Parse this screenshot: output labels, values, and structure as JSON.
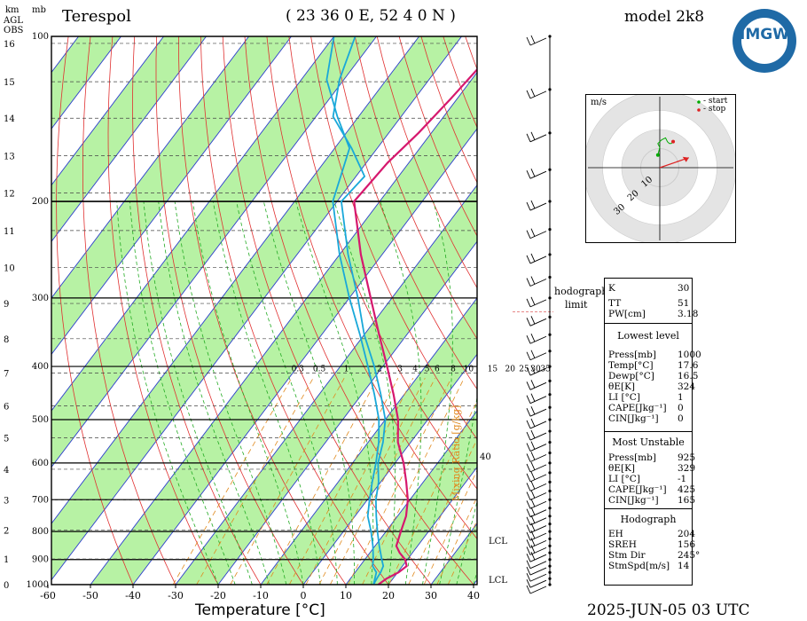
{
  "header": {
    "station": "Terespol",
    "coords": "( 23 36  0 E, 52  4  0 N )",
    "model": "model 2k8",
    "date_time": "2025-JUN-05   03 UTC",
    "logo_text": "IMGW"
  },
  "axes": {
    "left_units_km": "km",
    "left_units_mb": "mb",
    "agl": "AGL",
    "obs": "OBS",
    "xlabel": "Temperature [°C]",
    "mixing_ratio_label": "Mixing Ratio [g/kg]",
    "x_ticks": [
      "-60",
      "-50",
      "-40",
      "-30",
      "-20",
      "-10",
      "0",
      "10",
      "20",
      "30",
      "40"
    ],
    "p_ticks": [
      "100",
      "200",
      "300",
      "400",
      "500",
      "600",
      "700",
      "800",
      "900",
      "1000"
    ],
    "km_ticks": [
      "0",
      "1",
      "2",
      "3",
      "4",
      "5",
      "6",
      "7",
      "8",
      "9",
      "10",
      "11",
      "12",
      "13",
      "14",
      "15",
      "16"
    ],
    "mixing_ratio_ticks": [
      "0.3",
      "0.5",
      "1",
      "2",
      "3",
      "4",
      "5",
      "6",
      "8",
      "10",
      "15",
      "20",
      "25",
      "30",
      "35"
    ],
    "mixing_extra": "40",
    "lcl_label": "LCL",
    "lcl_label2": "LCL",
    "hodograph_limit_line1": "hodograph",
    "hodograph_limit_line2": "limit"
  },
  "hodograph": {
    "units": "m/s",
    "legend_start": "- start",
    "legend_stop": "- stop",
    "ring_labels": [
      "10",
      "20",
      "30"
    ],
    "start_color": "#00aa00",
    "stop_color": "#dd2222"
  },
  "panel": {
    "rows_top": [
      {
        "label": "K",
        "value": "30"
      },
      {
        "label": "TT",
        "value": "51"
      },
      {
        "label": "PW[cm]",
        "value": "3.18"
      }
    ],
    "lowest_level_title": "Lowest level",
    "lowest_level": [
      {
        "label": "Press[mb]",
        "value": "1000"
      },
      {
        "label": "Temp[°C]",
        "value": "17.6"
      },
      {
        "label": "Dewp[°C]",
        "value": "16.5"
      },
      {
        "label": "θE[K]",
        "value": "324"
      },
      {
        "label": "LI [°C]",
        "value": "1"
      },
      {
        "label": "CAPE[Jkg⁻¹]",
        "value": "0"
      },
      {
        "label": "CIN[Jkg⁻¹]",
        "value": "0"
      }
    ],
    "most_unstable_title": "Most Unstable",
    "most_unstable": [
      {
        "label": "Press[mb]",
        "value": "925"
      },
      {
        "label": "θE[K]",
        "value": "329"
      },
      {
        "label": "LI [°C]",
        "value": "-1"
      },
      {
        "label": "CAPE[Jkg⁻¹]",
        "value": "425"
      },
      {
        "label": "CIN[Jkg⁻¹]",
        "value": "165"
      }
    ],
    "hodograph_title": "Hodograph",
    "hodograph_rows": [
      {
        "label": "EH",
        "value": "204"
      },
      {
        "label": "SREH",
        "value": "156"
      },
      {
        "label": "Stm Dir",
        "value": "245°"
      },
      {
        "label": "StmSpd[m/s]",
        "value": "14"
      }
    ]
  },
  "chart_data": {
    "type": "line",
    "title": "Terespol",
    "xlabel": "Temperature [°C]",
    "ylabel": "",
    "xlim": [
      -60,
      40
    ],
    "ylim_hPa": [
      1000,
      100
    ],
    "series": [
      {
        "name": "",
        "color": "#d6186e",
        "points": [
          [
            1000,
            17.6
          ],
          [
            975,
            18.5
          ],
          [
            950,
            20.2
          ],
          [
            925,
            21.0
          ],
          [
            900,
            19.5
          ],
          [
            875,
            17.0
          ],
          [
            850,
            15.0
          ],
          [
            800,
            13.5
          ],
          [
            750,
            12.0
          ],
          [
            700,
            9.5
          ],
          [
            650,
            6.0
          ],
          [
            600,
            2.0
          ],
          [
            550,
            -3.0
          ],
          [
            500,
            -7.0
          ],
          [
            450,
            -12.5
          ],
          [
            400,
            -19.0
          ],
          [
            350,
            -26.5
          ],
          [
            300,
            -35.0
          ],
          [
            250,
            -45.0
          ],
          [
            200,
            -56.0
          ],
          [
            170,
            -55.0
          ],
          [
            150,
            -53.0
          ],
          [
            130,
            -51.5
          ],
          [
            115,
            -50.5
          ],
          [
            100,
            -49.5
          ]
        ]
      },
      {
        "name": "",
        "color": "#19a8d9",
        "points": [
          [
            1000,
            16.5
          ],
          [
            975,
            16.2
          ],
          [
            950,
            16.0
          ],
          [
            925,
            15.5
          ],
          [
            900,
            14.0
          ],
          [
            850,
            11.0
          ],
          [
            800,
            8.0
          ],
          [
            750,
            5.0
          ],
          [
            700,
            2.0
          ],
          [
            650,
            -0.5
          ],
          [
            600,
            -4.0
          ],
          [
            550,
            -6.5
          ],
          [
            500,
            -10.0
          ],
          [
            450,
            -15.5
          ],
          [
            400,
            -22.0
          ],
          [
            350,
            -30.0
          ],
          [
            300,
            -38.0
          ],
          [
            250,
            -48.0
          ],
          [
            200,
            -59.0
          ],
          [
            180,
            -58.0
          ],
          [
            160,
            -66.0
          ],
          [
            140,
            -76.0
          ],
          [
            120,
            -81.0
          ],
          [
            100,
            -85.0
          ]
        ]
      },
      {
        "name": "",
        "color": "#19a8d9",
        "points": [
          [
            1000,
            16.5
          ],
          [
            950,
            15.0
          ],
          [
            925,
            13.0
          ],
          [
            900,
            12.0
          ],
          [
            850,
            9.5
          ],
          [
            800,
            6.5
          ],
          [
            750,
            3.0
          ],
          [
            700,
            0.5
          ],
          [
            650,
            -2.0
          ],
          [
            600,
            -4.5
          ],
          [
            550,
            -7.5
          ],
          [
            500,
            -11.5
          ],
          [
            450,
            -17.0
          ],
          [
            400,
            -23.5
          ],
          [
            350,
            -31.0
          ],
          [
            300,
            -40.0
          ],
          [
            250,
            -50.0
          ],
          [
            200,
            -61.0
          ],
          [
            160,
            -66.5
          ],
          [
            140,
            -75.0
          ],
          [
            120,
            -84.0
          ],
          [
            100,
            -90.0
          ]
        ]
      }
    ],
    "winds_levels_hPa": [
      1000,
      975,
      950,
      925,
      900,
      875,
      850,
      825,
      800,
      775,
      750,
      725,
      700,
      675,
      650,
      625,
      600,
      575,
      550,
      525,
      500,
      475,
      450,
      425,
      400,
      375,
      350,
      325,
      300,
      275,
      250,
      225,
      200,
      175,
      150,
      125,
      100
    ],
    "hodograph_points": [
      [
        -1,
        2
      ],
      [
        0,
        6
      ],
      [
        -1,
        8
      ],
      [
        1,
        10
      ],
      [
        3,
        11
      ],
      [
        4,
        9
      ],
      [
        5,
        8
      ],
      [
        6,
        8
      ],
      [
        7,
        9
      ]
    ],
    "storm_motion": {
      "dir_deg": 245,
      "speed_ms": 14
    }
  }
}
